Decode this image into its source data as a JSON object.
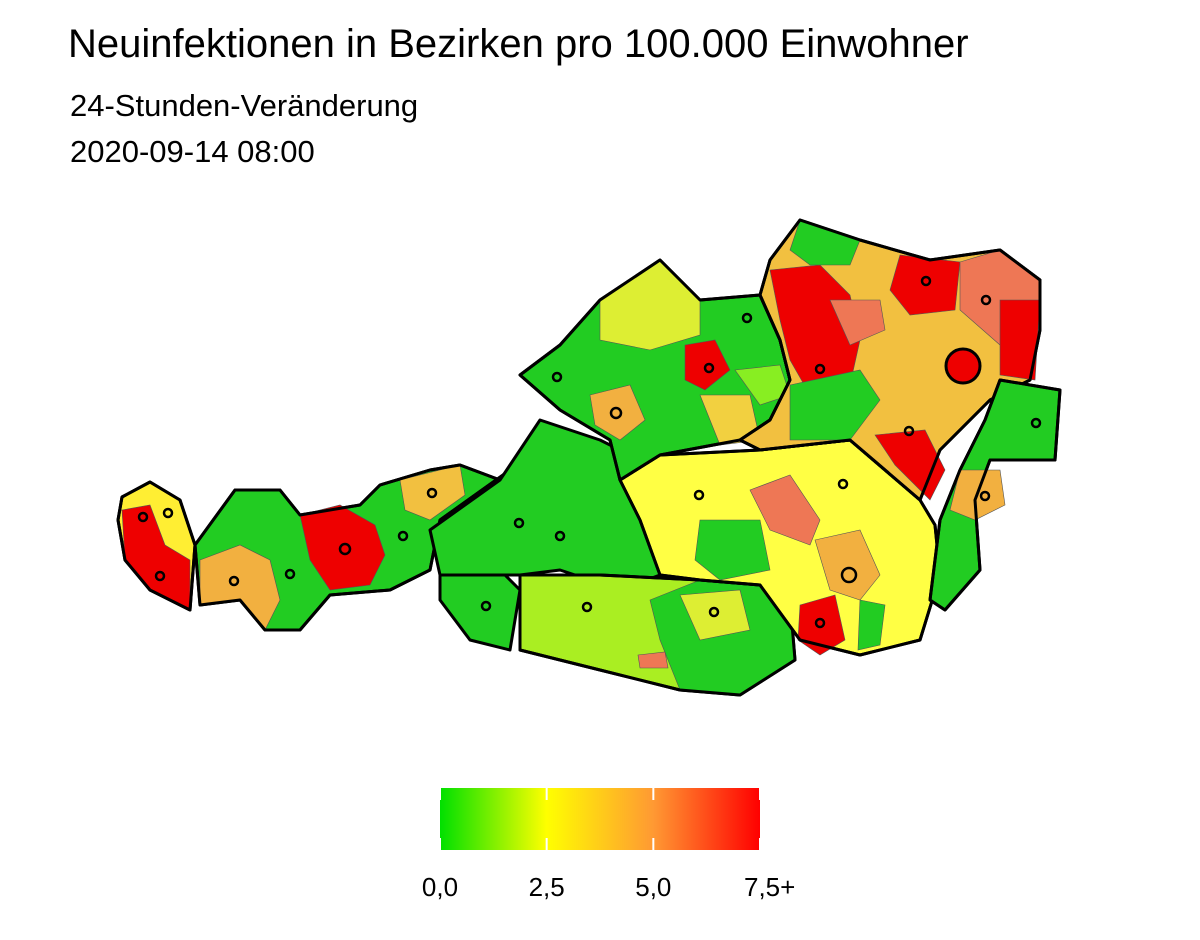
{
  "header": {
    "title": "Neuinfektionen in Bezirken pro 100.000 Einwohner",
    "subtitle": "24-Stunden-Veränderung",
    "date": "2020-09-14 08:00"
  },
  "legend": {
    "lim": [
      0,
      7.5
    ],
    "colors": [
      "#00e000",
      "#ffff00",
      "#ff9933",
      "#ff0000"
    ],
    "ticks": [
      {
        "value": 0,
        "label": "0,0"
      },
      {
        "value": 2.5,
        "label": "2,5"
      },
      {
        "value": 5,
        "label": "5,0"
      },
      {
        "value": 7.5,
        "label": "7,5+"
      }
    ]
  }
}
